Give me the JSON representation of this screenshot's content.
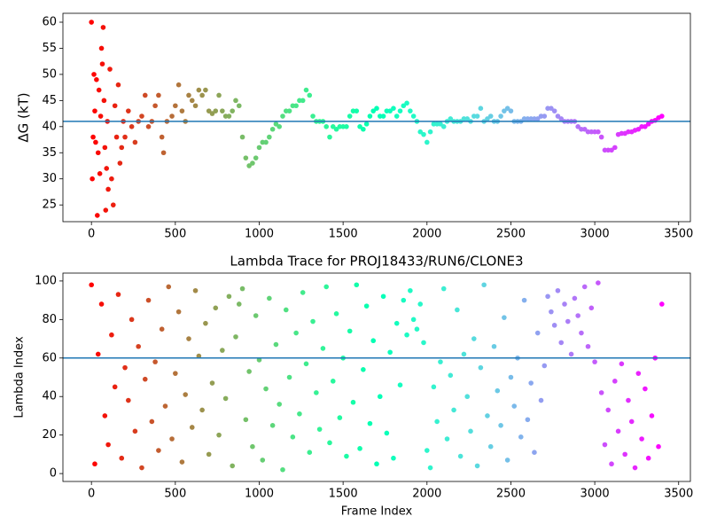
{
  "chart_data": [
    {
      "type": "scatter",
      "y_label": "ΔG (kT)",
      "colormap": "rainbow_r",
      "hline": 41,
      "hline_color": "#1f77b4",
      "xlim": [
        -170,
        3570
      ],
      "ylim": [
        21.8,
        61.7
      ],
      "xticks": [
        0,
        500,
        1000,
        1500,
        2000,
        2500,
        3000,
        3500
      ],
      "yticks": [
        25,
        30,
        35,
        40,
        45,
        50,
        55,
        60
      ],
      "x": [
        0,
        5,
        10,
        15,
        20,
        25,
        30,
        35,
        40,
        45,
        50,
        55,
        60,
        65,
        70,
        75,
        80,
        85,
        90,
        95,
        100,
        110,
        120,
        130,
        140,
        150,
        160,
        170,
        180,
        190,
        200,
        220,
        240,
        260,
        280,
        300,
        320,
        340,
        360,
        380,
        400,
        420,
        430,
        450,
        480,
        500,
        520,
        540,
        560,
        580,
        600,
        620,
        640,
        660,
        680,
        700,
        720,
        740,
        760,
        780,
        800,
        820,
        840,
        860,
        880,
        900,
        920,
        940,
        960,
        980,
        1000,
        1020,
        1040,
        1060,
        1080,
        1100,
        1120,
        1140,
        1160,
        1180,
        1200,
        1220,
        1240,
        1260,
        1280,
        1300,
        1320,
        1340,
        1360,
        1380,
        1400,
        1420,
        1440,
        1460,
        1480,
        1500,
        1520,
        1540,
        1560,
        1580,
        1600,
        1620,
        1640,
        1660,
        1680,
        1700,
        1720,
        1740,
        1760,
        1780,
        1800,
        1820,
        1840,
        1860,
        1880,
        1900,
        1920,
        1940,
        1960,
        1980,
        2000,
        2020,
        2040,
        2060,
        2080,
        2100,
        2120,
        2140,
        2160,
        2180,
        2200,
        2220,
        2240,
        2260,
        2280,
        2300,
        2320,
        2340,
        2360,
        2380,
        2400,
        2420,
        2440,
        2460,
        2480,
        2500,
        2520,
        2540,
        2560,
        2580,
        2600,
        2620,
        2640,
        2660,
        2680,
        2700,
        2720,
        2740,
        2760,
        2780,
        2800,
        2820,
        2840,
        2860,
        2880,
        2900,
        2920,
        2940,
        2960,
        2980,
        3000,
        3020,
        3040,
        3060,
        3080,
        3100,
        3120,
        3140,
        3160,
        3180,
        3200,
        3220,
        3240,
        3260,
        3280,
        3300,
        3320,
        3340,
        3360,
        3380,
        3400
      ],
      "values": [
        60,
        30,
        38,
        50,
        43,
        37,
        49,
        23,
        35,
        47,
        31,
        42,
        55,
        52,
        59,
        45,
        36,
        24,
        32,
        41,
        28,
        51,
        30,
        25,
        44,
        38,
        48,
        33,
        36,
        41,
        38,
        43,
        40,
        37,
        41,
        42,
        46,
        40,
        41,
        44,
        46,
        38,
        35,
        41,
        42,
        44,
        48,
        43,
        41,
        46,
        45,
        44,
        47,
        46,
        47,
        43,
        42.5,
        43,
        46,
        43,
        42,
        42,
        43,
        45,
        44,
        38,
        34,
        32.5,
        33,
        34,
        36,
        37,
        37,
        38,
        39.5,
        40.5,
        40,
        42,
        43,
        43,
        44,
        44,
        45,
        45,
        47,
        46,
        42,
        41,
        41,
        41,
        40,
        38,
        40,
        39.5,
        40,
        40,
        40,
        42,
        43,
        43,
        40,
        39.5,
        40.5,
        42,
        43,
        43.5,
        42,
        42,
        43,
        43,
        43.5,
        42,
        43,
        44,
        44.5,
        43,
        42,
        41,
        39,
        38.5,
        37,
        39,
        40.5,
        40.5,
        40.5,
        40,
        41,
        41.5,
        41,
        41,
        41,
        41.5,
        41.5,
        41,
        42,
        42,
        43.5,
        41,
        41.5,
        42,
        41,
        41,
        42,
        43,
        43.5,
        43,
        41,
        41,
        41,
        41.5,
        41.5,
        41.5,
        41.5,
        41.5,
        42,
        42,
        43.5,
        43.5,
        43,
        42,
        41.5,
        41,
        41,
        41,
        41,
        40,
        39.5,
        39.5,
        39,
        39,
        39,
        39,
        38,
        35.5,
        35.5,
        35.5,
        36,
        38.5,
        38.7,
        38.7,
        39,
        39,
        39.3,
        39.5,
        40,
        40,
        40.5,
        41,
        41.2,
        41.7,
        42
      ]
    },
    {
      "type": "scatter",
      "title": "Lambda Trace for PROJ18433/RUN6/CLONE3",
      "x_label": "Frame Index",
      "y_label": "Lambda Index",
      "colormap": "rainbow_r",
      "hline": 60,
      "hline_color": "#1f77b4",
      "xlim": [
        -170,
        3570
      ],
      "ylim": [
        -4.1,
        104.1
      ],
      "xticks": [
        0,
        500,
        1000,
        1500,
        2000,
        2500,
        3000,
        3500
      ],
      "yticks": [
        0,
        20,
        40,
        60,
        80,
        100
      ],
      "x": [
        0,
        20,
        40,
        60,
        80,
        100,
        120,
        140,
        160,
        180,
        200,
        220,
        240,
        260,
        280,
        300,
        320,
        340,
        360,
        380,
        400,
        420,
        440,
        460,
        480,
        500,
        520,
        540,
        560,
        580,
        600,
        620,
        640,
        660,
        680,
        700,
        720,
        740,
        760,
        780,
        800,
        820,
        840,
        860,
        880,
        900,
        920,
        940,
        960,
        980,
        1000,
        1020,
        1040,
        1060,
        1080,
        1100,
        1120,
        1140,
        1160,
        1180,
        1200,
        1220,
        1240,
        1260,
        1280,
        1300,
        1320,
        1340,
        1360,
        1380,
        1400,
        1420,
        1440,
        1460,
        1480,
        1500,
        1520,
        1540,
        1560,
        1580,
        1600,
        1620,
        1640,
        1660,
        1680,
        1700,
        1720,
        1740,
        1760,
        1780,
        1800,
        1820,
        1840,
        1860,
        1880,
        1900,
        1920,
        1940,
        1960,
        1980,
        2000,
        2020,
        2040,
        2060,
        2080,
        2100,
        2120,
        2140,
        2160,
        2180,
        2200,
        2220,
        2240,
        2260,
        2280,
        2300,
        2320,
        2340,
        2360,
        2380,
        2400,
        2420,
        2440,
        2460,
        2480,
        2500,
        2520,
        2540,
        2560,
        2580,
        2600,
        2620,
        2640,
        2660,
        2680,
        2700,
        2720,
        2740,
        2760,
        2780,
        2800,
        2820,
        2840,
        2860,
        2880,
        2900,
        2920,
        2940,
        2960,
        2980,
        3000,
        3020,
        3040,
        3060,
        3080,
        3100,
        3120,
        3140,
        3160,
        3180,
        3200,
        3220,
        3240,
        3260,
        3280,
        3300,
        3320,
        3340,
        3360,
        3380,
        3400
      ],
      "values": [
        98,
        5,
        62,
        88,
        30,
        15,
        72,
        45,
        93,
        8,
        55,
        38,
        80,
        22,
        66,
        3,
        49,
        90,
        27,
        58,
        12,
        75,
        35,
        97,
        18,
        52,
        84,
        6,
        41,
        70,
        24,
        95,
        61,
        33,
        78,
        10,
        47,
        86,
        20,
        64,
        39,
        92,
        4,
        71,
        88,
        96,
        28,
        53,
        14,
        82,
        59,
        7,
        44,
        91,
        25,
        67,
        36,
        2,
        85,
        50,
        19,
        73,
        31,
        94,
        57,
        11,
        79,
        42,
        23,
        65,
        97,
        16,
        48,
        83,
        29,
        60,
        9,
        74,
        37,
        98,
        13,
        54,
        87,
        26,
        69,
        5,
        40,
        92,
        21,
        63,
        8,
        78,
        46,
        90,
        72,
        95,
        80,
        75,
        88,
        68,
        12,
        3,
        45,
        27,
        58,
        96,
        18,
        51,
        33,
        85,
        9,
        62,
        40,
        22,
        70,
        4,
        55,
        98,
        30,
        14,
        66,
        43,
        25,
        81,
        7,
        50,
        35,
        60,
        19,
        90,
        28,
        47,
        11,
        73,
        38,
        56,
        92,
        84,
        77,
        95,
        68,
        88,
        79,
        62,
        91,
        82,
        73,
        97,
        66,
        86,
        58,
        99,
        42,
        15,
        33,
        5,
        48,
        22,
        57,
        10,
        38,
        27,
        3,
        52,
        18,
        44,
        8,
        30,
        60,
        14,
        88
      ]
    }
  ]
}
